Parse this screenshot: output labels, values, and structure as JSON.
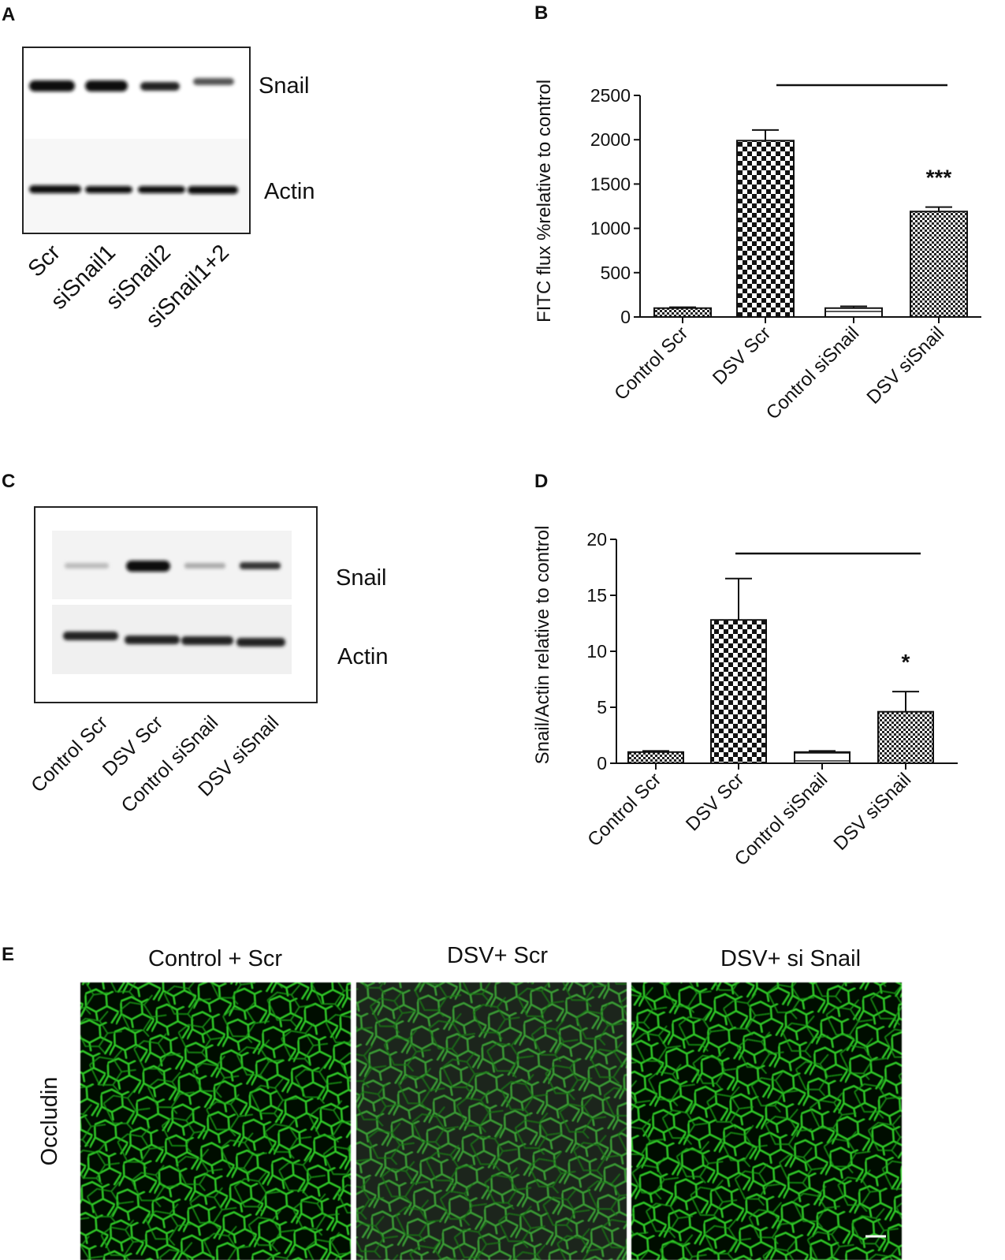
{
  "blot_a": {
    "panel_label": "A",
    "bands": [
      "Snail",
      "Actin"
    ],
    "lanes": [
      "Scr",
      "siSnail1",
      "siSnail2",
      "siSnail1+2"
    ]
  },
  "blot_c": {
    "panel_label": "C",
    "bands": [
      "Snail",
      "Actin"
    ],
    "lanes": [
      "Control Scr",
      "DSV Scr",
      "Control siSnail",
      "DSV siSnail"
    ]
  },
  "images_e": {
    "panel_label": "E",
    "columns": [
      "Control + Scr",
      "DSV+ Scr",
      "DSV+ si Snail"
    ],
    "row_label": "Occludin"
  },
  "chart_data": [
    {
      "type": "bar",
      "panel_label": "B",
      "y_label": "FITC flux %relative to control",
      "categories": [
        "Control Scr",
        "DSV Scr",
        "Control siSnail",
        "DSV siSnail"
      ],
      "values": [
        100,
        1990,
        100,
        1190
      ],
      "errors": [
        10,
        120,
        20,
        50
      ],
      "significance": [
        null,
        null,
        null,
        "***"
      ],
      "patterns": [
        "check-fine",
        "check-coarse",
        "stripes",
        "check-fine"
      ],
      "ylim": [
        0,
        2500
      ],
      "yticks": [
        0,
        500,
        1000,
        1500,
        2000,
        2500
      ]
    },
    {
      "type": "bar",
      "panel_label": "D",
      "y_label": "Snail/Actin relative to control",
      "categories": [
        "Control Scr",
        "DSV Scr",
        "Control siSnail",
        "DSV siSnail"
      ],
      "values": [
        1,
        12.8,
        1,
        4.6
      ],
      "errors": [
        0.1,
        3.7,
        0.1,
        1.8
      ],
      "significance": [
        null,
        null,
        null,
        "*"
      ],
      "patterns": [
        "check-fine",
        "check-coarse",
        "stripes",
        "check-fine"
      ],
      "ylim": [
        0,
        20
      ],
      "yticks": [
        0,
        5,
        10,
        15,
        20
      ]
    }
  ]
}
